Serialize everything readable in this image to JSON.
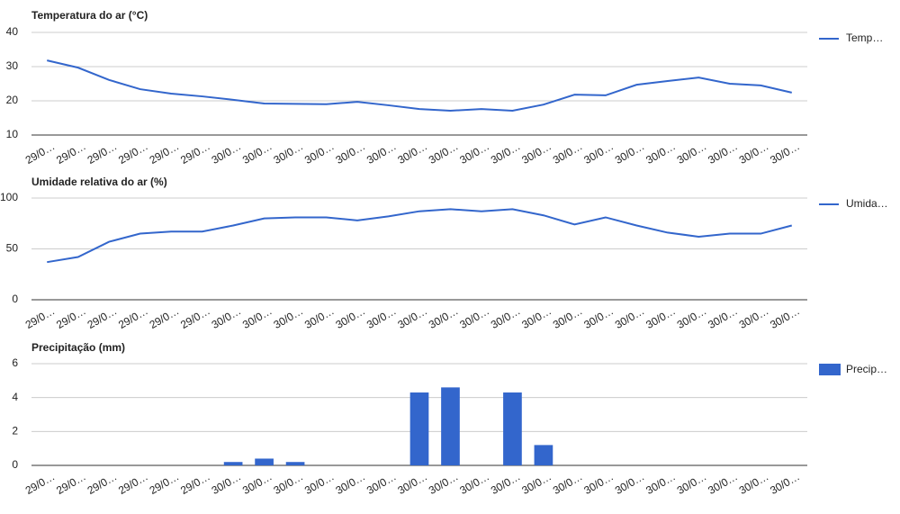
{
  "chart_data": [
    {
      "type": "line",
      "title": "Temperatura do ar (°C)",
      "categories": [
        "29/0…",
        "29/0…",
        "29/0…",
        "29/0…",
        "29/0…",
        "29/0…",
        "30/0…",
        "30/0…",
        "30/0…",
        "30/0…",
        "30/0…",
        "30/0…",
        "30/0…",
        "30/0…",
        "30/0…",
        "30/0…",
        "30/0…",
        "30/0…",
        "30/0…",
        "30/0…",
        "30/0…",
        "30/0…",
        "30/0…",
        "30/0…",
        "30/0…"
      ],
      "series": [
        {
          "name": "Temp…",
          "color": "#3366cc",
          "values": [
            31.8,
            29.7,
            26.1,
            23.4,
            22.1,
            21.3,
            20.3,
            19.2,
            19.1,
            19.0,
            19.7,
            18.7,
            17.6,
            17.1,
            17.6,
            17.1,
            18.9,
            21.8,
            21.6,
            24.7,
            25.8,
            26.8,
            25.0,
            24.5,
            22.4
          ]
        }
      ],
      "ylim": [
        10,
        40
      ],
      "yticks": [
        10,
        20,
        30,
        40
      ],
      "grid": true
    },
    {
      "type": "line",
      "title": "Umidade relativa do ar (%)",
      "categories": [
        "29/0…",
        "29/0…",
        "29/0…",
        "29/0…",
        "29/0…",
        "29/0…",
        "30/0…",
        "30/0…",
        "30/0…",
        "30/0…",
        "30/0…",
        "30/0…",
        "30/0…",
        "30/0…",
        "30/0…",
        "30/0…",
        "30/0…",
        "30/0…",
        "30/0…",
        "30/0…",
        "30/0…",
        "30/0…",
        "30/0…",
        "30/0…",
        "30/0…"
      ],
      "series": [
        {
          "name": "Umida…",
          "color": "#3366cc",
          "values": [
            37,
            42,
            57,
            65,
            67,
            67,
            73,
            80,
            81,
            81,
            78,
            82,
            87,
            89,
            87,
            89,
            83,
            74,
            81,
            73,
            66,
            62,
            65,
            65,
            73
          ]
        }
      ],
      "ylim": [
        0,
        100
      ],
      "yticks": [
        0,
        50,
        100
      ],
      "grid": true
    },
    {
      "type": "bar",
      "title": "Precipitação (mm)",
      "categories": [
        "29/0…",
        "29/0…",
        "29/0…",
        "29/0…",
        "29/0…",
        "29/0…",
        "30/0…",
        "30/0…",
        "30/0…",
        "30/0…",
        "30/0…",
        "30/0…",
        "30/0…",
        "30/0…",
        "30/0…",
        "30/0…",
        "30/0…",
        "30/0…",
        "30/0…",
        "30/0…",
        "30/0…",
        "30/0…",
        "30/0…",
        "30/0…",
        "30/0…"
      ],
      "series": [
        {
          "name": "Precip…",
          "color": "#3366cc",
          "values": [
            0,
            0,
            0,
            0,
            0,
            0,
            0.2,
            0.4,
            0.2,
            0,
            0,
            0,
            4.3,
            4.6,
            0,
            4.3,
            1.2,
            0,
            0,
            0,
            0,
            0,
            0,
            0,
            0
          ]
        }
      ],
      "ylim": [
        0,
        6
      ],
      "yticks": [
        0,
        2,
        4,
        6
      ],
      "grid": true
    }
  ]
}
